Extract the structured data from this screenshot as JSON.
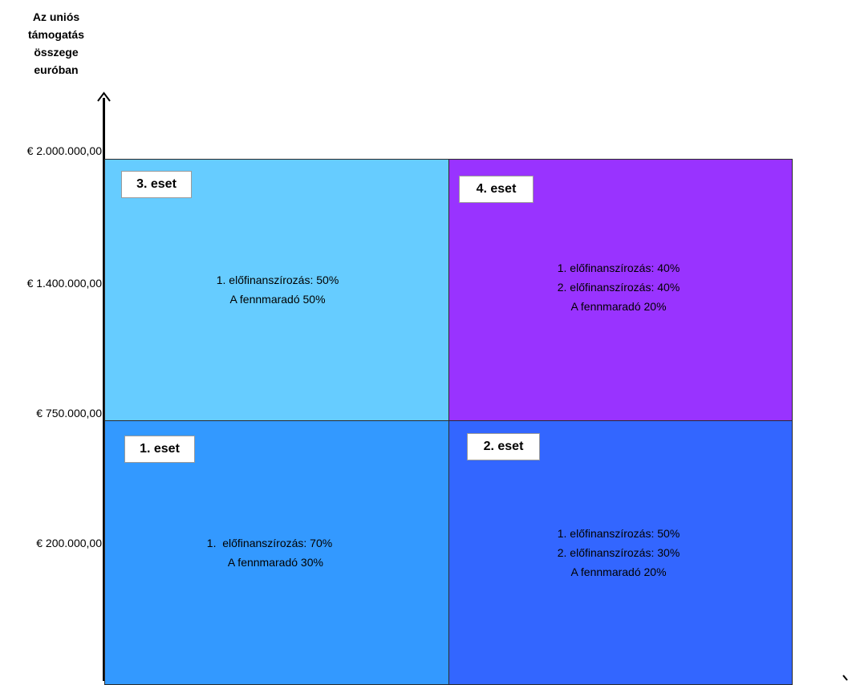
{
  "y_axis": {
    "title_lines": [
      "Az uniós",
      "támogatás",
      "összege",
      "euróban"
    ],
    "ticks": [
      "€ 2.000.000,00",
      "€ 1.400.000,00",
      "€ 750.000,00",
      "€ 200.000,00"
    ]
  },
  "quadrants": {
    "top_left": {
      "badge": "3. eset",
      "lines": [
        "1. előfinanszírozás: 50%",
        "A fennmaradó 50%"
      ],
      "color": "#66ccff"
    },
    "top_right": {
      "badge": "4. eset",
      "lines": [
        "1. előfinanszírozás: 40%",
        "2. előfinanszírozás: 40%",
        "A fennmaradó 20%"
      ],
      "color": "#9933ff"
    },
    "bottom_left": {
      "badge": "1. eset",
      "lines": [
        "1.  előfinanszírozás: 70%",
        "    A fennmaradó 30%"
      ],
      "color": "#3399ff"
    },
    "bottom_right": {
      "badge": "2. eset",
      "lines": [
        "1. előfinanszírozás: 50%",
        "2. előfinanszírozás: 30%",
        "A fennmaradó 20%"
      ],
      "color": "#3366ff"
    }
  }
}
